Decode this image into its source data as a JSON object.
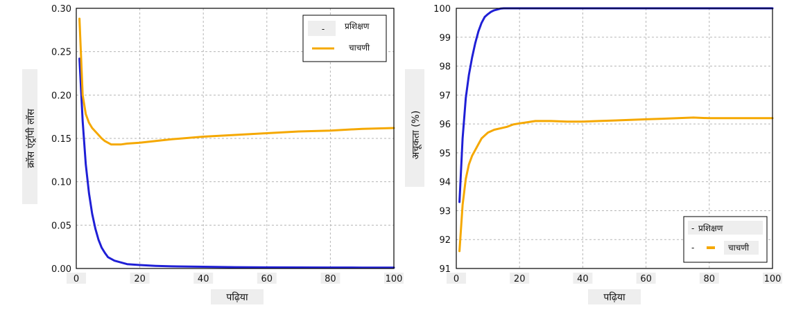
{
  "colors": {
    "train": "#1f1fd6",
    "test": "#f5a800",
    "grid": "#b5b5b5",
    "frame": "#000000"
  },
  "chart_data": [
    {
      "type": "line",
      "title": "",
      "xlabel": "पढ़िया",
      "ylabel": "क्रॉस एंट्रॉपी लॉस",
      "xlim": [
        0,
        100
      ],
      "ylim": [
        0,
        0.3
      ],
      "xticks": [
        "0",
        "20",
        "40",
        "60",
        "80",
        "100"
      ],
      "yticks": [
        "0.00",
        "0.05",
        "0.10",
        "0.15",
        "0.20",
        "0.25",
        "0.30"
      ],
      "grid": true,
      "legend_position": "top-right",
      "series": [
        {
          "name": "प्रशिक्षण",
          "legend_marker": "-",
          "x": [
            1,
            2,
            3,
            4,
            5,
            6,
            7,
            8,
            9,
            10,
            12,
            14,
            16,
            18,
            20,
            25,
            30,
            40,
            50,
            60,
            70,
            80,
            90,
            100
          ],
          "y": [
            0.242,
            0.17,
            0.12,
            0.087,
            0.063,
            0.046,
            0.033,
            0.024,
            0.018,
            0.013,
            0.009,
            0.007,
            0.005,
            0.0045,
            0.004,
            0.003,
            0.0025,
            0.002,
            0.0015,
            0.0013,
            0.0012,
            0.0011,
            0.001,
            0.001
          ]
        },
        {
          "name": "चाचणी",
          "legend_marker": "line",
          "x": [
            1,
            2,
            3,
            4,
            5,
            6,
            7,
            8,
            9,
            10,
            11,
            12,
            14,
            16,
            20,
            25,
            30,
            40,
            50,
            60,
            70,
            80,
            90,
            100
          ],
          "y": [
            0.288,
            0.2,
            0.178,
            0.168,
            0.162,
            0.158,
            0.154,
            0.15,
            0.147,
            0.145,
            0.143,
            0.143,
            0.143,
            0.144,
            0.145,
            0.147,
            0.149,
            0.152,
            0.154,
            0.156,
            0.158,
            0.159,
            0.161,
            0.162
          ]
        }
      ]
    },
    {
      "type": "line",
      "title": "",
      "xlabel": "पढ़िया",
      "ylabel": "अचूकता (%)",
      "xlim": [
        0,
        100
      ],
      "ylim": [
        91,
        100
      ],
      "xticks": [
        "0",
        "20",
        "40",
        "60",
        "80",
        "100"
      ],
      "yticks": [
        "91",
        "92",
        "93",
        "94",
        "95",
        "96",
        "97",
        "98",
        "99",
        "100"
      ],
      "grid": true,
      "legend_position": "bottom-right",
      "series": [
        {
          "name": "प्रशिक्षण",
          "legend_marker": "-",
          "x": [
            1,
            2,
            3,
            4,
            5,
            6,
            7,
            8,
            9,
            10,
            11,
            12,
            13,
            14,
            15,
            20,
            30,
            40,
            50,
            60,
            70,
            80,
            90,
            100
          ],
          "y": [
            93.3,
            95.5,
            96.9,
            97.7,
            98.3,
            98.8,
            99.2,
            99.5,
            99.7,
            99.8,
            99.88,
            99.93,
            99.96,
            99.99,
            100,
            100,
            100,
            100,
            100,
            100,
            100,
            100,
            100,
            100
          ]
        },
        {
          "name": "चाचणी",
          "legend_marker": "-",
          "x": [
            1,
            2,
            3,
            4,
            5,
            6,
            7,
            8,
            9,
            10,
            12,
            14,
            16,
            18,
            20,
            22,
            25,
            30,
            35,
            40,
            45,
            50,
            55,
            60,
            65,
            70,
            75,
            80,
            85,
            90,
            95,
            100
          ],
          "y": [
            91.6,
            93.2,
            94.1,
            94.6,
            94.9,
            95.1,
            95.3,
            95.5,
            95.6,
            95.7,
            95.8,
            95.85,
            95.9,
            95.98,
            96.02,
            96.05,
            96.1,
            96.1,
            96.08,
            96.08,
            96.1,
            96.12,
            96.14,
            96.16,
            96.18,
            96.2,
            96.22,
            96.2,
            96.2,
            96.2,
            96.2,
            96.2
          ]
        }
      ]
    }
  ]
}
